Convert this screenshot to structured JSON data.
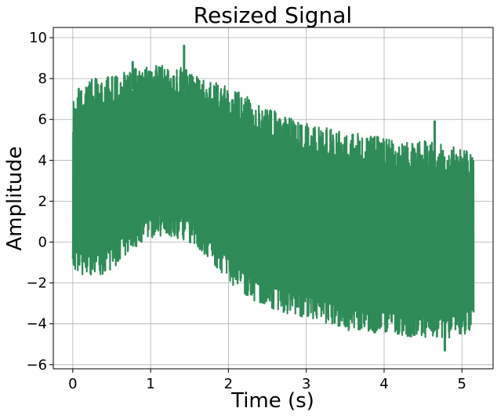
{
  "chart_data": {
    "type": "line",
    "title": "Resized Signal",
    "xlabel": "Time (s)",
    "ylabel": "Amplitude",
    "xlim": [
      -0.25,
      5.4
    ],
    "ylim": [
      -6.2,
      10.5
    ],
    "xticks": [
      0,
      1,
      2,
      3,
      4,
      5
    ],
    "yticks": [
      -6,
      -4,
      -2,
      0,
      2,
      4,
      6,
      8,
      10
    ],
    "xtick_labels": [
      "0",
      "1",
      "2",
      "3",
      "4",
      "5"
    ],
    "ytick_labels": [
      "−6",
      "−4",
      "−2",
      "0",
      "2",
      "4",
      "6",
      "8",
      "10"
    ],
    "grid": true,
    "legend": "none",
    "series": [
      {
        "color": "#2e8b57",
        "x_range": [
          0,
          5.15
        ],
        "envelope": {
          "x": [
            0,
            0.25,
            0.5,
            0.75,
            1.0,
            1.25,
            1.5,
            1.75,
            2.0,
            2.25,
            2.5,
            2.75,
            3.0,
            3.25,
            3.5,
            3.75,
            4.0,
            4.25,
            4.5,
            4.75,
            5.0,
            5.15
          ],
          "upper": [
            7.3,
            8.0,
            8.1,
            8.5,
            8.6,
            8.7,
            8.4,
            8.1,
            7.6,
            7.1,
            6.6,
            6.1,
            5.8,
            5.6,
            5.4,
            5.3,
            5.1,
            4.9,
            5.0,
            4.8,
            4.6,
            4.5
          ],
          "lower": [
            -1.5,
            -1.8,
            -1.4,
            -0.4,
            0.2,
            0.3,
            0.0,
            -0.8,
            -1.9,
            -2.8,
            -3.2,
            -3.5,
            -3.7,
            -4.0,
            -4.3,
            -4.5,
            -4.5,
            -4.6,
            -4.7,
            -4.8,
            -4.6,
            -4.2
          ]
        },
        "peaks": [
          {
            "x": 1.43,
            "y": 9.6
          },
          {
            "x": 0.77,
            "y": 8.8
          },
          {
            "x": 4.65,
            "y": 5.9
          },
          {
            "x": 4.78,
            "y": -5.3
          }
        ]
      }
    ]
  }
}
